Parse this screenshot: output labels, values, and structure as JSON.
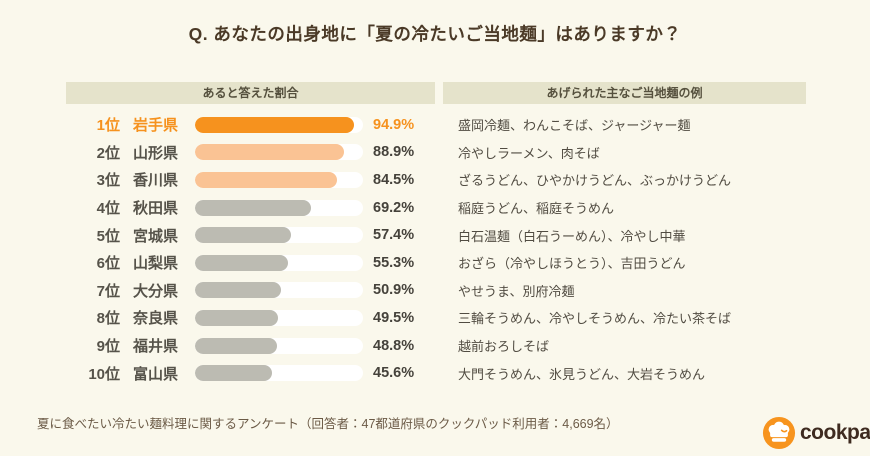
{
  "title": "Q. あなたの出身地に「夏の冷たいご当地麺」はありますか？",
  "columns": {
    "left": "あると答えた割合",
    "right": "あげられた主なご当地麺の例"
  },
  "chart_data": {
    "type": "bar",
    "orientation": "horizontal",
    "unit": "%",
    "xlim": [
      0,
      100
    ],
    "categories": [
      "岩手県",
      "山形県",
      "香川県",
      "秋田県",
      "宮城県",
      "山梨県",
      "大分県",
      "奈良県",
      "福井県",
      "富山県"
    ],
    "values": [
      94.9,
      88.9,
      84.5,
      69.2,
      57.4,
      55.3,
      50.9,
      49.5,
      48.8,
      45.6
    ],
    "rows": [
      {
        "rank": "1位",
        "prefecture": "岩手県",
        "value": 94.9,
        "value_label": "94.9%",
        "examples": "盛岡冷麺、わんこそば、ジャージャー麺",
        "tier": "primary",
        "emphasized": true
      },
      {
        "rank": "2位",
        "prefecture": "山形県",
        "value": 88.9,
        "value_label": "88.9%",
        "examples": "冷やしラーメン、肉そば",
        "tier": "secondary",
        "emphasized": false
      },
      {
        "rank": "3位",
        "prefecture": "香川県",
        "value": 84.5,
        "value_label": "84.5%",
        "examples": "ざるうどん、ひやかけうどん、ぶっかけうどん",
        "tier": "secondary",
        "emphasized": false
      },
      {
        "rank": "4位",
        "prefecture": "秋田県",
        "value": 69.2,
        "value_label": "69.2%",
        "examples": "稲庭うどん、稲庭そうめん",
        "tier": "neutral",
        "emphasized": false
      },
      {
        "rank": "5位",
        "prefecture": "宮城県",
        "value": 57.4,
        "value_label": "57.4%",
        "examples": "白石温麺（白石うーめん）、冷やし中華",
        "tier": "neutral",
        "emphasized": false
      },
      {
        "rank": "6位",
        "prefecture": "山梨県",
        "value": 55.3,
        "value_label": "55.3%",
        "examples": "おざら（冷やしほうとう）、吉田うどん",
        "tier": "neutral",
        "emphasized": false
      },
      {
        "rank": "7位",
        "prefecture": "大分県",
        "value": 50.9,
        "value_label": "50.9%",
        "examples": "やせうま、別府冷麺",
        "tier": "neutral",
        "emphasized": false
      },
      {
        "rank": "8位",
        "prefecture": "奈良県",
        "value": 49.5,
        "value_label": "49.5%",
        "examples": "三輪そうめん、冷やしそうめん、冷たい茶そば",
        "tier": "neutral",
        "emphasized": false
      },
      {
        "rank": "9位",
        "prefecture": "福井県",
        "value": 48.8,
        "value_label": "48.8%",
        "examples": "越前おろしそば",
        "tier": "neutral",
        "emphasized": false
      },
      {
        "rank": "10位",
        "prefecture": "富山県",
        "value": 45.6,
        "value_label": "45.6%",
        "examples": "大門そうめん、氷見うどん、大岩そうめん",
        "tier": "neutral",
        "emphasized": false
      }
    ]
  },
  "footer": {
    "note": "夏に食べたい冷たい麺料理に関するアンケート（回答者：47都道府県のクックパッド利用者：4,669名）",
    "logo_text": "cookpad"
  },
  "colors": {
    "background": "#faf8ec",
    "header_bg": "#e5e3cb",
    "bar_track": "#ffffff",
    "bar_primary": "#f6921e",
    "bar_secondary": "#fac394",
    "bar_neutral": "#bcbbb2",
    "text_dark": "#56534a",
    "title_text": "#4b3a27",
    "footer_text": "#6b5a46",
    "logo_orange": "#f7941e",
    "logo_wordmark": "#3e2b20"
  }
}
